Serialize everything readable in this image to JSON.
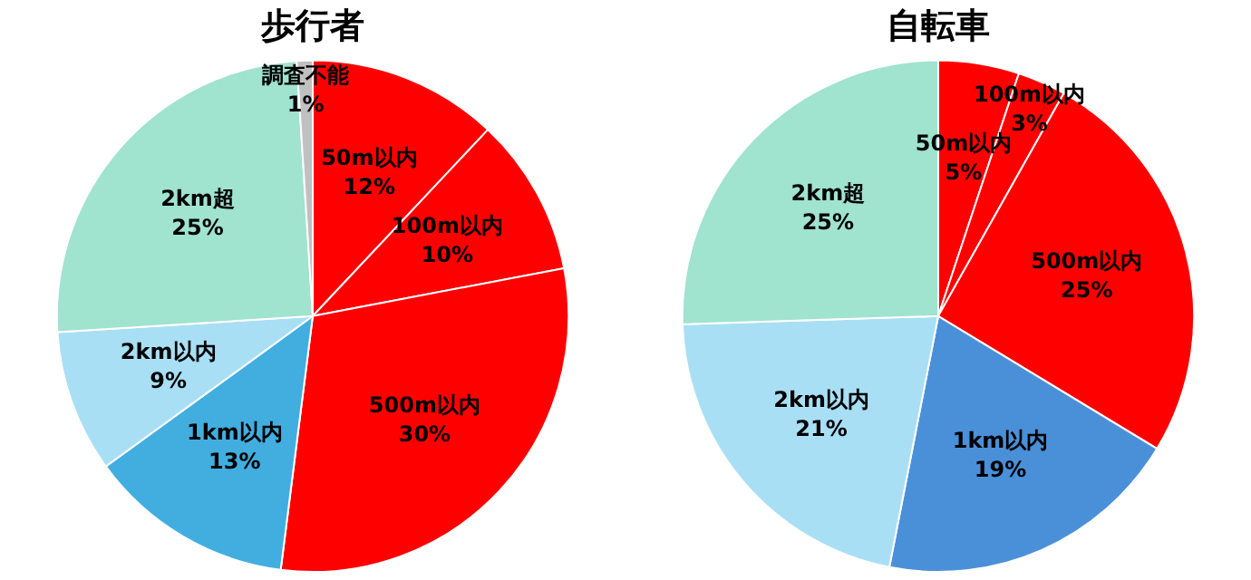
{
  "chart_data": [
    {
      "type": "pie",
      "title": "歩行者",
      "categories": [
        "50m以内",
        "100m以内",
        "500m以内",
        "1km以内",
        "2km以内",
        "2km超",
        "調査不能"
      ],
      "values": [
        12,
        10,
        30,
        13,
        9,
        25,
        1
      ],
      "value_labels": [
        "12%",
        "10%",
        "30%",
        "13%",
        "9%",
        "25%",
        "1%"
      ],
      "colors": [
        "#ff0000",
        "#ff0000",
        "#ff0000",
        "#42aee0",
        "#a9dff5",
        "#a0e3cf",
        "#c0c0c0"
      ]
    },
    {
      "type": "pie",
      "title": "自転車",
      "categories": [
        "50m以内",
        "100m以内",
        "500m以内",
        "1km以内",
        "2km以内",
        "2km超"
      ],
      "values": [
        5,
        3,
        25,
        19,
        21,
        25
      ],
      "value_labels": [
        "5%",
        "3%",
        "25%",
        "19%",
        "21%",
        "25%"
      ],
      "colors": [
        "#ff0000",
        "#ff0000",
        "#ff0000",
        "#4a90d9",
        "#a9dff5",
        "#a0e3cf"
      ]
    }
  ]
}
